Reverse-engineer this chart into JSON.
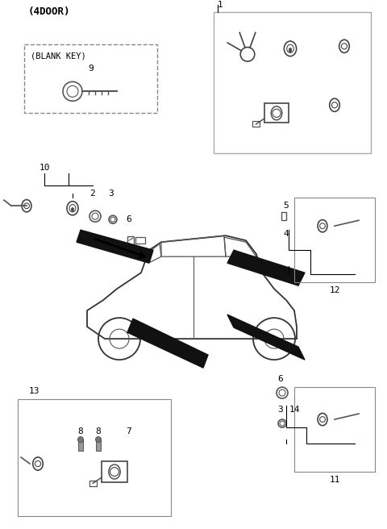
{
  "title": "(4DOOR)",
  "bg_color": "#ffffff",
  "line_color": "#000000",
  "text_color": "#000000",
  "gray_color": "#888888",
  "light_gray": "#cccccc",
  "fig_width": 4.8,
  "fig_height": 6.56,
  "dpi": 100,
  "parts": {
    "label1": "1",
    "label2": "2",
    "label3": "3",
    "label4": "4",
    "label5": "5",
    "label6": "6",
    "label7": "7",
    "label8a": "8",
    "label8b": "8",
    "label9": "9",
    "label10": "10",
    "label11": "11",
    "label12": "12",
    "label13": "13",
    "label14": "14",
    "blank_key": "(BLANK KEY)"
  }
}
